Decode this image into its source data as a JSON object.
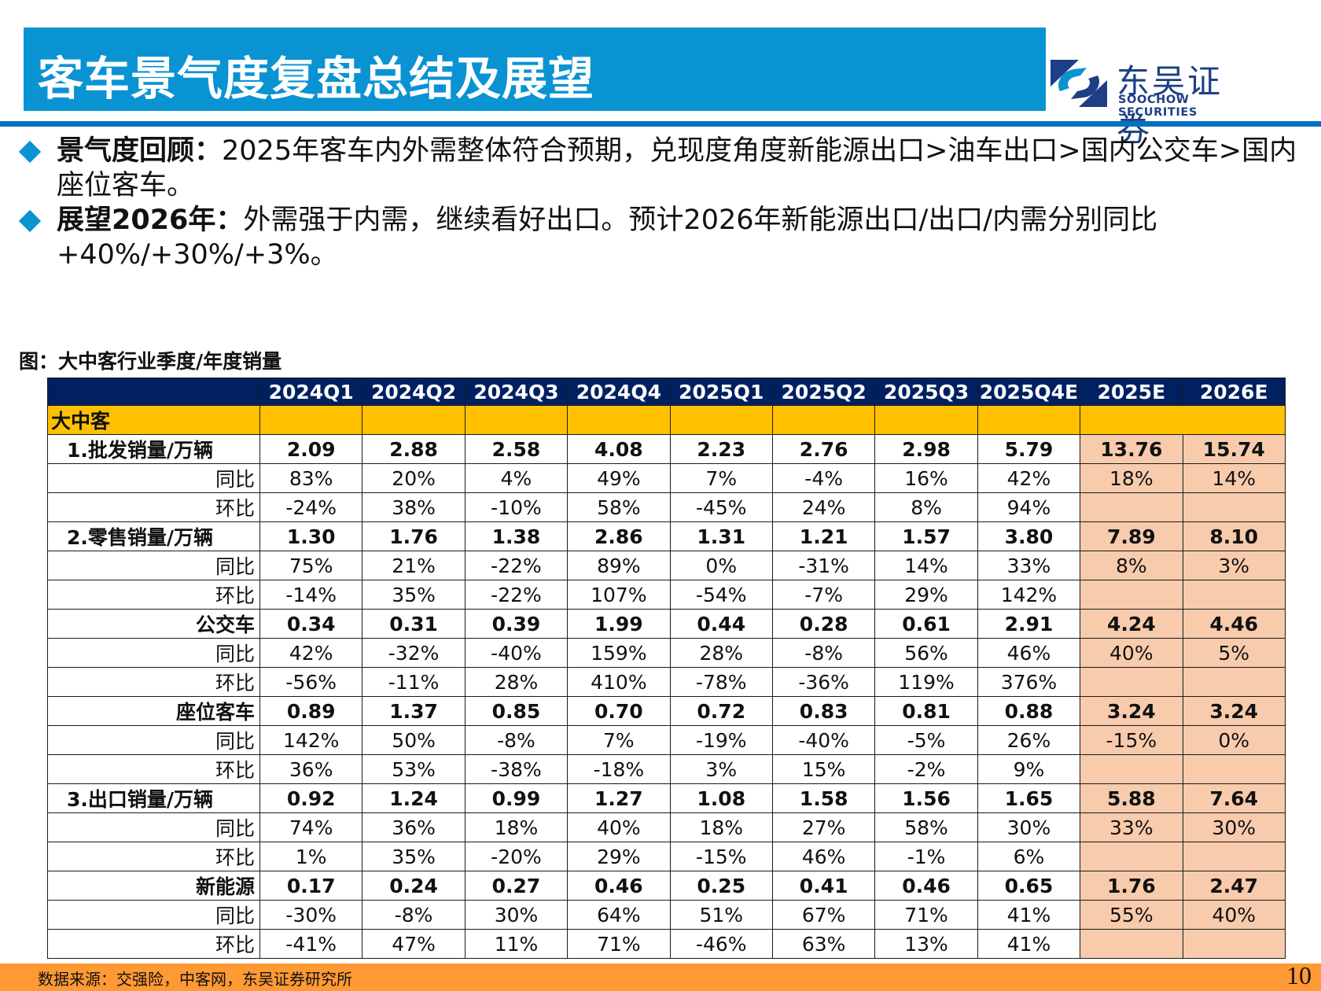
{
  "header": {
    "title": "客车景气度复盘总结及展望",
    "logo": {
      "icon": "soochow-logo-mark",
      "name_cn": "东吴证券",
      "name_en": "SOOCHOW SECURITIES"
    },
    "colors": {
      "title_bar": "#0A93D3",
      "rule": "#0070C0"
    }
  },
  "bullets": [
    {
      "icon": "diamond-bullet-icon",
      "heading": "景气度回顾：",
      "text": "2025年客车内外需整体符合预期，兑现度角度新能源出口>油车出口>国内公交车>国内座位客车。"
    },
    {
      "icon": "diamond-bullet-icon",
      "heading": "展望2026年：",
      "text": "外需强于内需，继续看好出口。预计2026年新能源出口/出口/内需分别同比+40%/+30%/+3%。"
    }
  ],
  "figure": {
    "caption": "图：大中客行业季度/年度销量",
    "columns": [
      "2024Q1",
      "2024Q2",
      "2024Q3",
      "2024Q4",
      "2025Q1",
      "2025Q2",
      "2025Q3",
      "2025Q4E",
      "2025E",
      "2026E"
    ],
    "group_label": "大中客",
    "colors": {
      "header_bg": "#002060",
      "group_bg": "#FFC000",
      "estimate_bg": "#F8CBAD"
    },
    "rows": [
      {
        "label": "1.批发销量/万辆",
        "type": "main",
        "align": "left",
        "values": [
          "2.09",
          "2.88",
          "2.58",
          "4.08",
          "2.23",
          "2.76",
          "2.98",
          "5.79",
          "13.76",
          "15.74"
        ]
      },
      {
        "label": "同比",
        "type": "sub",
        "align": "right",
        "values": [
          "83%",
          "20%",
          "4%",
          "49%",
          "7%",
          "-4%",
          "16%",
          "42%",
          "18%",
          "14%"
        ]
      },
      {
        "label": "环比",
        "type": "sub",
        "align": "right",
        "values": [
          "-24%",
          "38%",
          "-10%",
          "58%",
          "-45%",
          "24%",
          "8%",
          "94%",
          "",
          ""
        ]
      },
      {
        "label": "2.零售销量/万辆",
        "type": "main",
        "align": "left",
        "values": [
          "1.30",
          "1.76",
          "1.38",
          "2.86",
          "1.31",
          "1.21",
          "1.57",
          "3.80",
          "7.89",
          "8.10"
        ]
      },
      {
        "label": "同比",
        "type": "sub",
        "align": "right",
        "values": [
          "75%",
          "21%",
          "-22%",
          "89%",
          "0%",
          "-31%",
          "14%",
          "33%",
          "8%",
          "3%"
        ]
      },
      {
        "label": "环比",
        "type": "sub",
        "align": "right",
        "values": [
          "-14%",
          "35%",
          "-22%",
          "107%",
          "-54%",
          "-7%",
          "29%",
          "142%",
          "",
          ""
        ]
      },
      {
        "label": "公交车",
        "type": "main",
        "align": "right",
        "values": [
          "0.34",
          "0.31",
          "0.39",
          "1.99",
          "0.44",
          "0.28",
          "0.61",
          "2.91",
          "4.24",
          "4.46"
        ]
      },
      {
        "label": "同比",
        "type": "sub",
        "align": "right",
        "values": [
          "42%",
          "-32%",
          "-40%",
          "159%",
          "28%",
          "-8%",
          "56%",
          "46%",
          "40%",
          "5%"
        ]
      },
      {
        "label": "环比",
        "type": "sub",
        "align": "right",
        "values": [
          "-56%",
          "-11%",
          "28%",
          "410%",
          "-78%",
          "-36%",
          "119%",
          "376%",
          "",
          ""
        ]
      },
      {
        "label": "座位客车",
        "type": "main",
        "align": "right",
        "values": [
          "0.89",
          "1.37",
          "0.85",
          "0.70",
          "0.72",
          "0.83",
          "0.81",
          "0.88",
          "3.24",
          "3.24"
        ]
      },
      {
        "label": "同比",
        "type": "sub",
        "align": "right",
        "values": [
          "142%",
          "50%",
          "-8%",
          "7%",
          "-19%",
          "-40%",
          "-5%",
          "26%",
          "-15%",
          "0%"
        ]
      },
      {
        "label": "环比",
        "type": "sub",
        "align": "right",
        "values": [
          "36%",
          "53%",
          "-38%",
          "-18%",
          "3%",
          "15%",
          "-2%",
          "9%",
          "",
          ""
        ]
      },
      {
        "label": "3.出口销量/万辆",
        "type": "main",
        "align": "left",
        "values": [
          "0.92",
          "1.24",
          "0.99",
          "1.27",
          "1.08",
          "1.58",
          "1.56",
          "1.65",
          "5.88",
          "7.64"
        ]
      },
      {
        "label": "同比",
        "type": "sub",
        "align": "right",
        "values": [
          "74%",
          "36%",
          "18%",
          "40%",
          "18%",
          "27%",
          "58%",
          "30%",
          "33%",
          "30%"
        ]
      },
      {
        "label": "环比",
        "type": "sub",
        "align": "right",
        "values": [
          "1%",
          "35%",
          "-20%",
          "29%",
          "-15%",
          "46%",
          "-1%",
          "6%",
          "",
          ""
        ]
      },
      {
        "label": "新能源",
        "type": "main",
        "align": "right",
        "values": [
          "0.17",
          "0.24",
          "0.27",
          "0.46",
          "0.25",
          "0.41",
          "0.46",
          "0.65",
          "1.76",
          "2.47"
        ]
      },
      {
        "label": "同比",
        "type": "sub",
        "align": "right",
        "values": [
          "-30%",
          "-8%",
          "30%",
          "64%",
          "51%",
          "67%",
          "71%",
          "41%",
          "55%",
          "40%"
        ]
      },
      {
        "label": "环比",
        "type": "sub",
        "align": "right",
        "values": [
          "-41%",
          "47%",
          "11%",
          "71%",
          "-46%",
          "63%",
          "13%",
          "41%",
          "",
          ""
        ]
      }
    ]
  },
  "footer": {
    "source": "数据来源：交强险，中客网，东吴证券研究所",
    "page_number": "10",
    "color": "#FF9933"
  }
}
